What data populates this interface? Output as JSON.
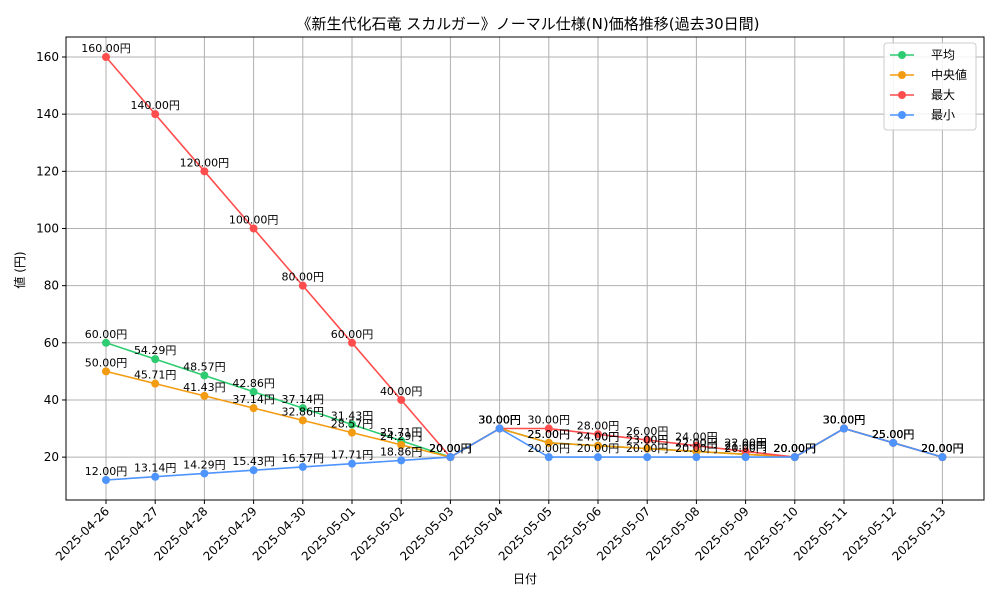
{
  "chart_data": {
    "type": "line",
    "title": "《新生代化石竜 スカルガー》ノーマル仕様(N)価格推移(過去30日間)",
    "xlabel": "日付",
    "ylabel": "値 (円)",
    "ylim": [
      5,
      167
    ],
    "yticks": [
      20,
      40,
      60,
      80,
      100,
      120,
      140,
      160
    ],
    "grid": true,
    "legend_position": "top-right",
    "value_suffix": "円",
    "categories": [
      "2025-04-26",
      "2025-04-27",
      "2025-04-28",
      "2025-04-29",
      "2025-04-30",
      "2025-05-01",
      "2025-05-02",
      "2025-05-03",
      "2025-05-04",
      "2025-05-05",
      "2025-05-06",
      "2025-05-07",
      "2025-05-08",
      "2025-05-09",
      "2025-05-10",
      "2025-05-11",
      "2025-05-12",
      "2025-05-13"
    ],
    "series": [
      {
        "name": "平均",
        "color": "#2ecc71",
        "values": [
          60.0,
          54.29,
          48.57,
          42.86,
          37.14,
          31.43,
          25.71,
          20.0,
          30.0,
          25.0,
          24.0,
          23.0,
          22.0,
          21.0,
          20.0,
          30.0,
          25.0,
          20.0
        ]
      },
      {
        "name": "中央値",
        "color": "#f39c12",
        "values": [
          50.0,
          45.71,
          41.43,
          37.14,
          32.86,
          28.57,
          24.29,
          20.0,
          30.0,
          25.0,
          24.0,
          23.0,
          22.0,
          21.0,
          20.0,
          30.0,
          25.0,
          20.0
        ]
      },
      {
        "name": "最大",
        "color": "#ff4d4d",
        "values": [
          160.0,
          140.0,
          120.0,
          100.0,
          80.0,
          60.0,
          40.0,
          20.0,
          30.0,
          30.0,
          28.0,
          26.0,
          24.0,
          22.0,
          20.0,
          30.0,
          25.0,
          20.0
        ]
      },
      {
        "name": "最小",
        "color": "#4d94ff",
        "values": [
          12.0,
          13.14,
          14.29,
          15.43,
          16.57,
          17.71,
          18.86,
          20.0,
          30.0,
          20.0,
          20.0,
          20.0,
          20.0,
          20.0,
          20.0,
          30.0,
          25.0,
          20.0
        ]
      }
    ]
  }
}
